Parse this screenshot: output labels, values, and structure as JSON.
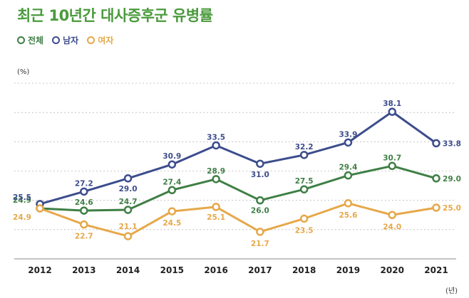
{
  "chart_data": {
    "type": "line",
    "title": "최근 10년간 대사증후군 유병률",
    "ylabel": "(%)",
    "x_unit": "(년)",
    "categories": [
      "2012",
      "2013",
      "2014",
      "2015",
      "2016",
      "2017",
      "2018",
      "2019",
      "2020",
      "2021"
    ],
    "ylim": [
      18,
      42
    ],
    "grid": true,
    "legend_placement": "top-left",
    "series": [
      {
        "name": "전체",
        "color": "#3f7f45",
        "values": [
          24.9,
          24.6,
          24.7,
          27.4,
          28.9,
          26.0,
          27.5,
          29.4,
          30.7,
          29.0
        ]
      },
      {
        "name": "남자",
        "color": "#3d4d8c",
        "values": [
          25.5,
          27.2,
          29.0,
          30.9,
          33.5,
          31.0,
          32.2,
          33.9,
          38.1,
          33.8
        ]
      },
      {
        "name": "여자",
        "color": "#e6a84a",
        "values": [
          24.9,
          22.7,
          21.1,
          24.5,
          25.1,
          21.7,
          23.5,
          25.6,
          24.0,
          25.0
        ]
      }
    ]
  }
}
